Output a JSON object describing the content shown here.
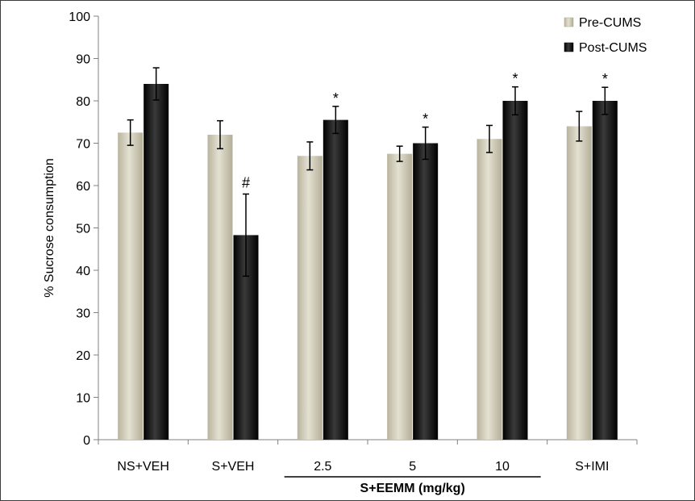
{
  "chart_data": {
    "type": "bar",
    "ylabel": "% Sucrose consumption",
    "ylim": [
      0,
      100
    ],
    "yticks": [
      0,
      10,
      20,
      30,
      40,
      50,
      60,
      70,
      80,
      90,
      100
    ],
    "categories": [
      "NS+VEH",
      "S+VEH",
      "2.5",
      "5",
      "10",
      "S+IMI"
    ],
    "group_label": "S+EEMM (mg/kg)",
    "legend_position": "top-right",
    "grid": false,
    "colors": {
      "Pre-CUMS": "#d6d2bf",
      "Post-CUMS": "#1a1a1a"
    },
    "series": [
      {
        "name": "Pre-CUMS",
        "values": [
          72.5,
          72,
          67,
          67.5,
          71,
          74
        ],
        "errors": [
          3,
          3.3,
          3.3,
          1.8,
          3.2,
          3.5
        ],
        "markers": [
          "",
          "",
          "",
          "",
          "",
          ""
        ]
      },
      {
        "name": "Post-CUMS",
        "values": [
          84,
          48.3,
          75.5,
          70,
          80,
          80
        ],
        "errors": [
          3.8,
          9.7,
          3.2,
          3.8,
          3.3,
          3.2
        ],
        "markers": [
          "",
          "#",
          "*",
          "*",
          "*",
          "*"
        ]
      }
    ]
  }
}
